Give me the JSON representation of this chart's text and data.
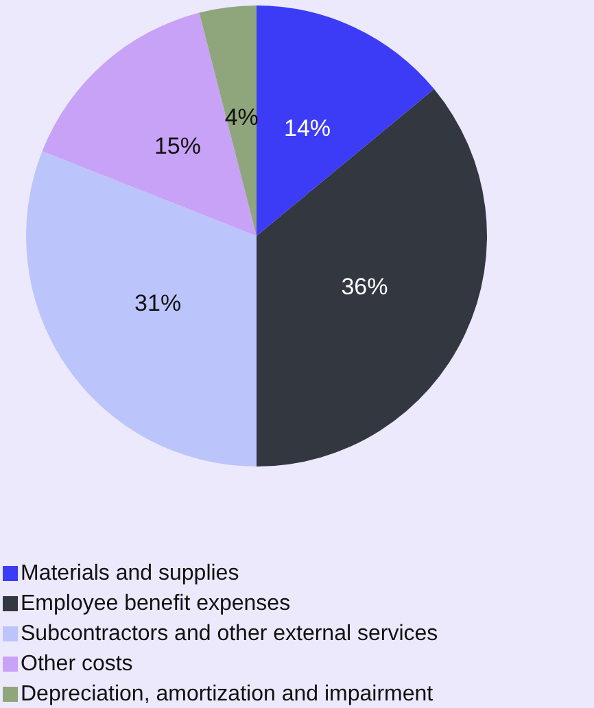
{
  "chart_data": {
    "type": "pie",
    "categories": [
      "Materials and supplies",
      "Employee benefit expenses",
      "Subcontractors and other external services",
      "Other costs",
      "Depreciation, amortization and impairment"
    ],
    "values": [
      14,
      36,
      31,
      15,
      4
    ],
    "value_labels": [
      "14%",
      "36%",
      "31%",
      "15%",
      "4%"
    ],
    "colors": [
      "#3c3cf7",
      "#323740",
      "#bcc4fc",
      "#c8a2f7",
      "#8fa67c"
    ],
    "legend": "bottom left"
  }
}
